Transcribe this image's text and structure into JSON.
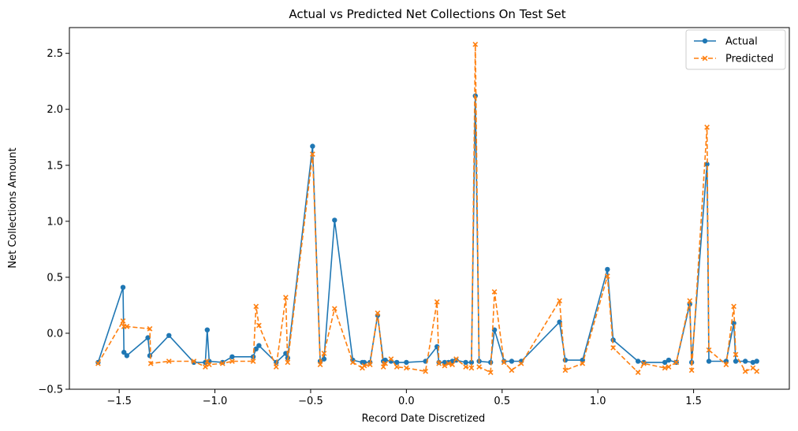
{
  "chart_data": {
    "type": "line",
    "title": "Actual vs Predicted Net Collections On Test Set",
    "xlabel": "Record Date Discretized",
    "ylabel": "Net Collections Amount",
    "xlim": [
      -1.76,
      2.0
    ],
    "ylim": [
      -0.5,
      2.73
    ],
    "x_ticks": [
      -1.5,
      -1.0,
      -0.5,
      0.0,
      0.5,
      1.0,
      1.5
    ],
    "x_tick_labels": [
      "−1.5",
      "−1.0",
      "−0.5",
      "0.0",
      "0.5",
      "1.0",
      "1.5"
    ],
    "y_ticks": [
      -0.5,
      0.0,
      0.5,
      1.0,
      1.5,
      2.0,
      2.5
    ],
    "y_tick_labels": [
      "−0.5",
      "0.0",
      "0.5",
      "1.0",
      "1.5",
      "2.0",
      "2.5"
    ],
    "grid": false,
    "legend_position": "top-right",
    "series": [
      {
        "name": "Actual",
        "color": "#1f77b4",
        "line_style": "solid",
        "marker": "circle",
        "x": [
          -1.61,
          -1.48,
          -1.475,
          -1.46,
          -1.35,
          -1.34,
          -1.24,
          -1.11,
          -1.05,
          -1.04,
          -1.03,
          -0.96,
          -0.91,
          -0.8,
          -0.785,
          -0.77,
          -0.68,
          -0.63,
          -0.62,
          -0.49,
          -0.45,
          -0.43,
          -0.375,
          -0.28,
          -0.23,
          -0.22,
          -0.19,
          -0.15,
          -0.12,
          -0.11,
          -0.08,
          -0.05,
          0.0,
          0.1,
          0.16,
          0.17,
          0.2,
          0.22,
          0.24,
          0.26,
          0.31,
          0.34,
          0.36,
          0.38,
          0.44,
          0.46,
          0.51,
          0.55,
          0.6,
          0.8,
          0.83,
          0.92,
          1.05,
          1.08,
          1.21,
          1.24,
          1.35,
          1.37,
          1.41,
          1.48,
          1.49,
          1.57,
          1.58,
          1.67,
          1.71,
          1.72,
          1.77,
          1.81,
          1.83
        ],
        "y": [
          -0.26,
          0.41,
          -0.17,
          -0.2,
          -0.04,
          -0.2,
          -0.02,
          -0.26,
          -0.26,
          0.03,
          -0.25,
          -0.26,
          -0.21,
          -0.21,
          -0.14,
          -0.11,
          -0.26,
          -0.18,
          -0.22,
          1.67,
          -0.25,
          -0.23,
          1.01,
          -0.24,
          -0.26,
          -0.26,
          -0.26,
          0.16,
          -0.25,
          -0.24,
          -0.25,
          -0.26,
          -0.26,
          -0.25,
          -0.12,
          -0.26,
          -0.26,
          -0.26,
          -0.25,
          -0.24,
          -0.26,
          -0.26,
          2.12,
          -0.25,
          -0.26,
          0.03,
          -0.25,
          -0.25,
          -0.25,
          0.1,
          -0.24,
          -0.24,
          0.57,
          -0.06,
          -0.25,
          -0.26,
          -0.26,
          -0.24,
          -0.26,
          0.26,
          -0.26,
          1.51,
          -0.25,
          -0.25,
          0.09,
          -0.25,
          -0.25,
          -0.26,
          -0.25
        ]
      },
      {
        "name": "Predicted",
        "color": "#ff7f0e",
        "line_style": "dashed",
        "marker": "x",
        "x": [
          -1.61,
          -1.48,
          -1.475,
          -1.46,
          -1.34,
          -1.335,
          -1.24,
          -1.11,
          -1.05,
          -1.04,
          -1.03,
          -0.96,
          -0.91,
          -0.8,
          -0.785,
          -0.77,
          -0.68,
          -0.63,
          -0.62,
          -0.49,
          -0.45,
          -0.43,
          -0.375,
          -0.28,
          -0.23,
          -0.22,
          -0.19,
          -0.15,
          -0.12,
          -0.11,
          -0.08,
          -0.05,
          0.0,
          0.1,
          0.16,
          0.17,
          0.2,
          0.22,
          0.24,
          0.26,
          0.31,
          0.34,
          0.36,
          0.38,
          0.44,
          0.46,
          0.51,
          0.55,
          0.6,
          0.8,
          0.83,
          0.92,
          1.05,
          1.08,
          1.21,
          1.24,
          1.35,
          1.37,
          1.41,
          1.48,
          1.49,
          1.57,
          1.58,
          1.67,
          1.71,
          1.72,
          1.77,
          1.81,
          1.83
        ],
        "y": [
          -0.27,
          0.11,
          0.06,
          0.06,
          0.04,
          -0.27,
          -0.25,
          -0.25,
          -0.3,
          -0.25,
          -0.28,
          -0.27,
          -0.25,
          -0.25,
          0.24,
          0.07,
          -0.3,
          0.32,
          -0.26,
          1.6,
          -0.28,
          -0.18,
          0.22,
          -0.26,
          -0.31,
          -0.29,
          -0.28,
          0.18,
          -0.3,
          -0.27,
          -0.23,
          -0.3,
          -0.31,
          -0.34,
          0.28,
          -0.27,
          -0.29,
          -0.27,
          -0.28,
          -0.23,
          -0.3,
          -0.31,
          2.58,
          -0.3,
          -0.35,
          0.37,
          -0.26,
          -0.33,
          -0.27,
          0.29,
          -0.33,
          -0.27,
          0.51,
          -0.13,
          -0.35,
          -0.27,
          -0.31,
          -0.3,
          -0.26,
          0.29,
          -0.33,
          1.84,
          -0.15,
          -0.28,
          0.24,
          -0.19,
          -0.34,
          -0.31,
          -0.34
        ]
      }
    ]
  }
}
